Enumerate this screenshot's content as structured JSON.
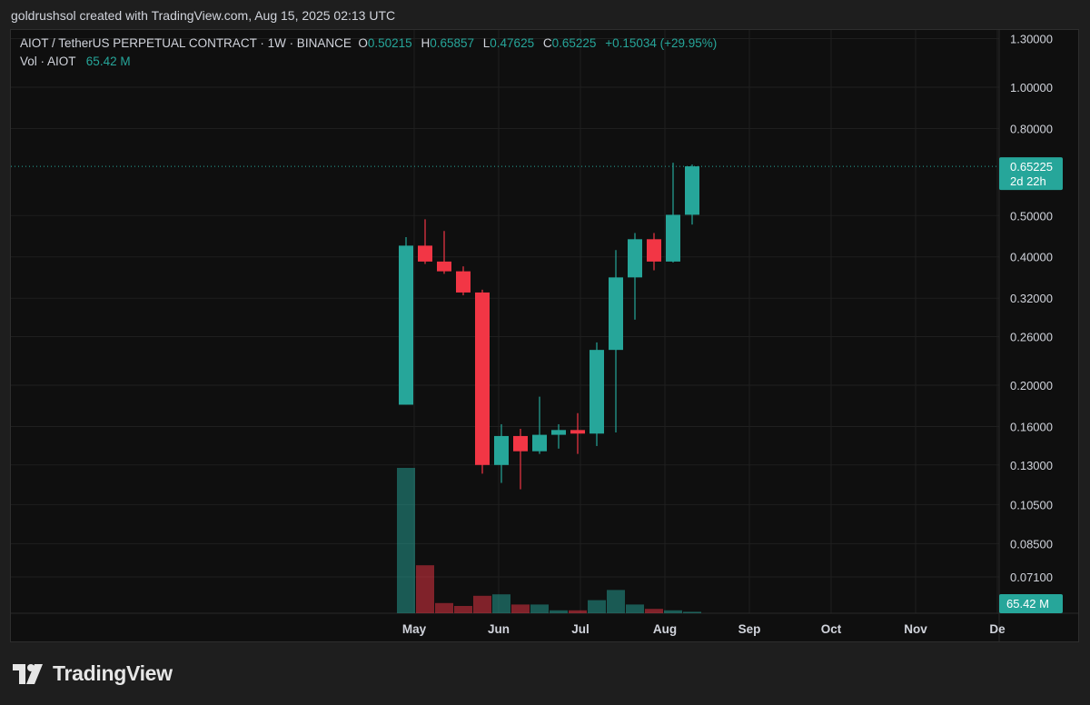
{
  "header": {
    "attribution": "goldrushsol created with TradingView.com, Aug 15, 2025 02:13 UTC"
  },
  "legend": {
    "symbol": "AIOT / TetherUS PERPETUAL CONTRACT · 1W · BINANCE",
    "o_label": "O",
    "o_value": "0.50215",
    "h_label": "H",
    "h_value": "0.65857",
    "l_label": "L",
    "l_value": "0.47625",
    "c_label": "C",
    "c_value": "0.65225",
    "change": "+0.15034 (+29.95%)",
    "vol_label": "Vol · AIOT",
    "vol_value": "65.42 M"
  },
  "price_badge": {
    "price": "0.65225",
    "countdown": "2d 22h"
  },
  "volume_badge": "65.42 M",
  "footer": {
    "brand": "TradingView"
  },
  "colors": {
    "up": "#26a69a",
    "down": "#f23645",
    "background": "#0f0f0f",
    "grid": "#1f1f1f",
    "text": "#d1d4dc"
  },
  "chart_data": {
    "type": "candlestick",
    "interval": "1W",
    "scale": "log",
    "y_ticks": [
      "1.30000",
      "1.00000",
      "0.80000",
      "0.65225",
      "0.50000",
      "0.40000",
      "0.32000",
      "0.26000",
      "0.20000",
      "0.16000",
      "0.13000",
      "0.10500",
      "0.08500",
      "0.07100"
    ],
    "x_ticks": [
      "May",
      "Jun",
      "Jul",
      "Aug",
      "Sep",
      "Oct",
      "Nov",
      "De"
    ],
    "candles": [
      {
        "date": "2025-04-28",
        "o": 0.18,
        "h": 0.445,
        "l": 0.18,
        "c": 0.425,
        "vol": 100
      },
      {
        "date": "2025-05-05",
        "o": 0.425,
        "h": 0.49,
        "l": 0.385,
        "c": 0.39,
        "vol": 33
      },
      {
        "date": "2025-05-12",
        "o": 0.39,
        "h": 0.46,
        "l": 0.365,
        "c": 0.37,
        "vol": 7
      },
      {
        "date": "2025-05-19",
        "o": 0.37,
        "h": 0.38,
        "l": 0.325,
        "c": 0.33,
        "vol": 5
      },
      {
        "date": "2025-05-26",
        "o": 0.33,
        "h": 0.335,
        "l": 0.124,
        "c": 0.13,
        "vol": 12
      },
      {
        "date": "2025-06-02",
        "o": 0.13,
        "h": 0.162,
        "l": 0.118,
        "c": 0.152,
        "vol": 13
      },
      {
        "date": "2025-06-09",
        "o": 0.152,
        "h": 0.158,
        "l": 0.114,
        "c": 0.14,
        "vol": 6
      },
      {
        "date": "2025-06-16",
        "o": 0.14,
        "h": 0.188,
        "l": 0.138,
        "c": 0.153,
        "vol": 6
      },
      {
        "date": "2025-06-23",
        "o": 0.153,
        "h": 0.162,
        "l": 0.142,
        "c": 0.157,
        "vol": 2
      },
      {
        "date": "2025-06-30",
        "o": 0.157,
        "h": 0.172,
        "l": 0.138,
        "c": 0.154,
        "vol": 2
      },
      {
        "date": "2025-07-07",
        "o": 0.154,
        "h": 0.252,
        "l": 0.144,
        "c": 0.242,
        "vol": 9
      },
      {
        "date": "2025-07-14",
        "o": 0.242,
        "h": 0.415,
        "l": 0.155,
        "c": 0.358,
        "vol": 16
      },
      {
        "date": "2025-07-21",
        "o": 0.358,
        "h": 0.455,
        "l": 0.285,
        "c": 0.44,
        "vol": 6
      },
      {
        "date": "2025-07-28",
        "o": 0.44,
        "h": 0.455,
        "l": 0.372,
        "c": 0.39,
        "vol": 3
      },
      {
        "date": "2025-08-04",
        "o": 0.39,
        "h": 0.665,
        "l": 0.388,
        "c": 0.502,
        "vol": 2
      },
      {
        "date": "2025-08-11",
        "o": 0.50215,
        "h": 0.65857,
        "l": 0.47625,
        "c": 0.65225,
        "vol": 1
      }
    ]
  }
}
